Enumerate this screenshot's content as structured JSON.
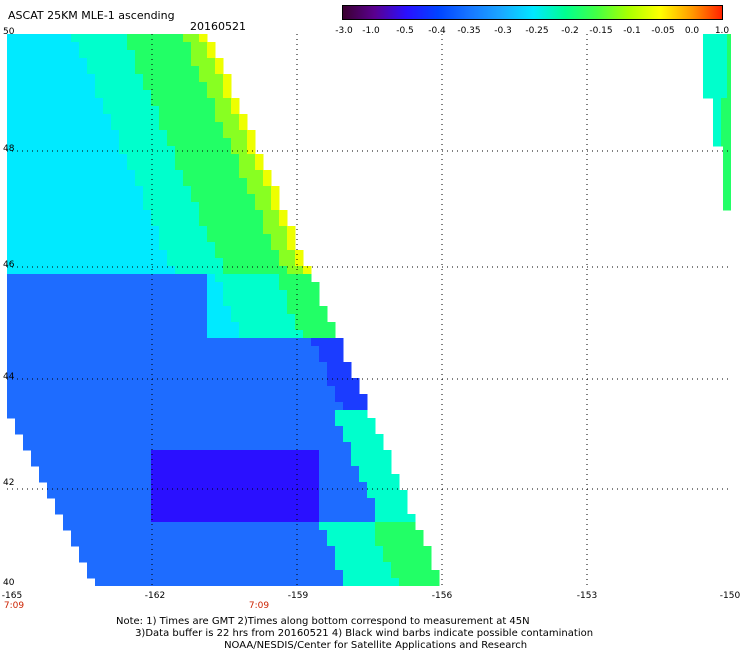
{
  "header": {
    "title": "ASCAT 25KM MLE-1 ascending",
    "date": "20160521"
  },
  "colorbar": {
    "ticks": [
      "-3.0",
      "-1.0",
      "-0.5",
      "-0.4",
      "-0.35",
      "-0.3",
      "-0.25",
      "-0.2",
      "-0.15",
      "-0.1",
      "-0.05",
      "0.0",
      "1.0"
    ],
    "colors": [
      "#3a0030",
      "#5a0090",
      "#2a10ff",
      "#0044ff",
      "#1777ff",
      "#1aa8ff",
      "#00e8ff",
      "#00ff90",
      "#44ff44",
      "#aaff00",
      "#ffff00",
      "#ff9900",
      "#ff1a00"
    ]
  },
  "axes": {
    "lat_labels": [
      "50",
      "48",
      "46",
      "44",
      "42",
      "40"
    ],
    "lon_labels": [
      "-165",
      "-162",
      "-159",
      "-156",
      "-153",
      "-150"
    ],
    "time_labels": [
      {
        "lon": "-165",
        "text": "7:09"
      },
      {
        "lon": "-159",
        "text": "7:09"
      }
    ],
    "grid": "dotted"
  },
  "map": {
    "lat_range": [
      40,
      50
    ],
    "lon_range": [
      -165,
      -150
    ],
    "swath_main": "west swath, lon -165 to -156",
    "swath_east": "edge of next swath near lon -150"
  },
  "footer": {
    "line1": "Note: 1) Times are GMT 2)Times along bottom correspond to measurement at 45N",
    "line2": "      3)Data buffer is 22 hrs from 20160521 4) Black wind barbs indicate possible contamination",
    "line3": "                                  NOAA/NESDIS/Center for Satellite Applications and Research"
  }
}
